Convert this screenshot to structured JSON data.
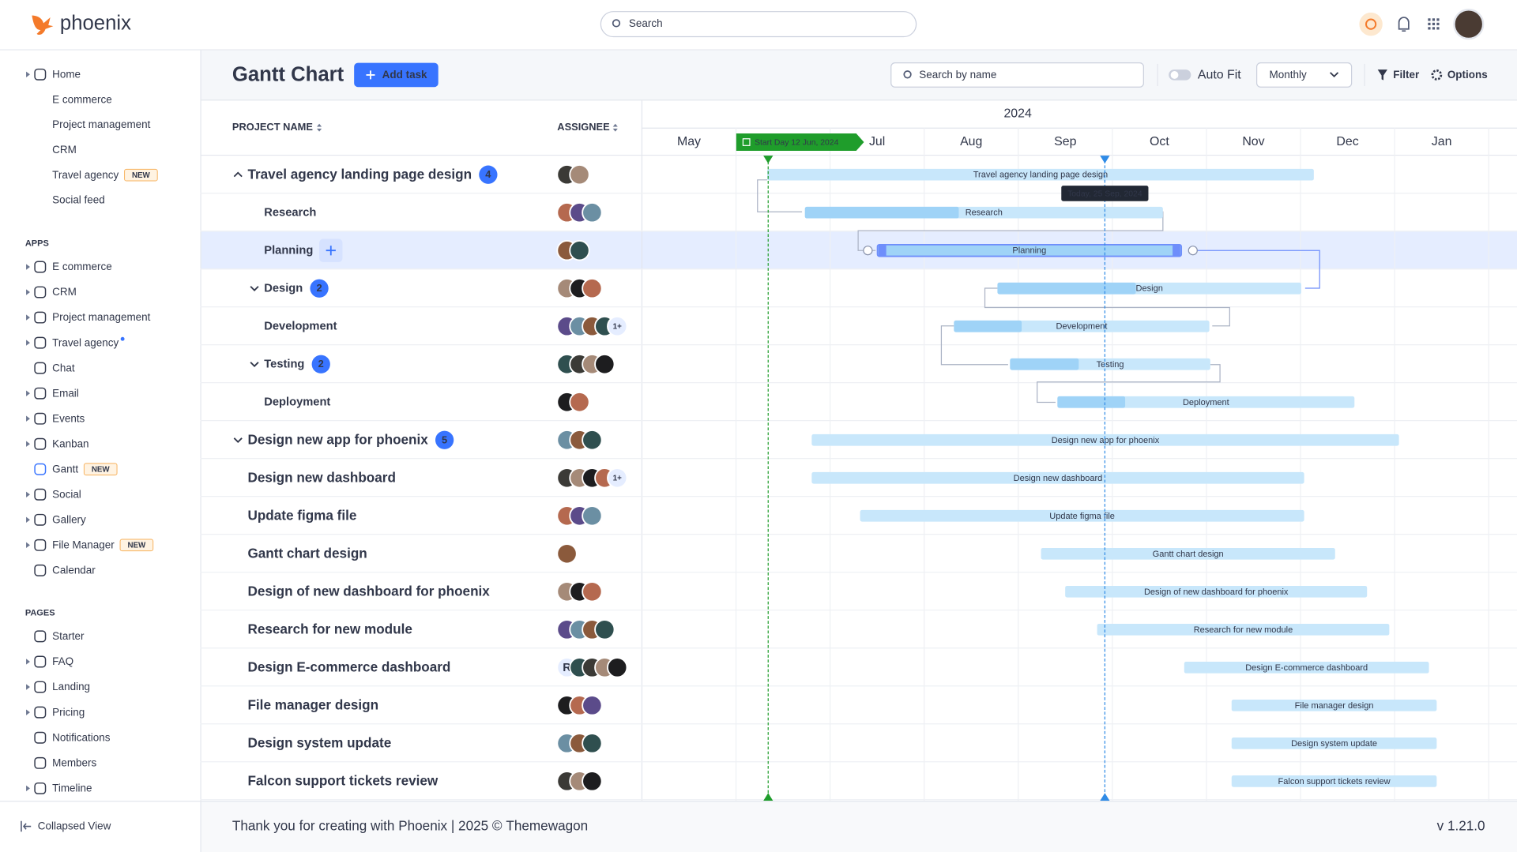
{
  "topbar": {
    "brand": "phoenix",
    "search": "Search"
  },
  "sidebar": {
    "main": [
      {
        "label": "Home"
      },
      {
        "label": "E commerce"
      },
      {
        "label": "Project management"
      },
      {
        "label": "CRM"
      },
      {
        "label": "Travel agency",
        "badge": "NEW"
      },
      {
        "label": "Social feed"
      }
    ],
    "apps_title": "APPS",
    "apps": [
      {
        "label": "E commerce"
      },
      {
        "label": "CRM"
      },
      {
        "label": "Project management"
      },
      {
        "label": "Travel agency"
      },
      {
        "label": "Chat"
      },
      {
        "label": "Email"
      },
      {
        "label": "Events"
      },
      {
        "label": "Kanban"
      },
      {
        "label": "Gantt",
        "badge": "NEW"
      },
      {
        "label": "Social"
      },
      {
        "label": "Gallery"
      },
      {
        "label": "File Manager",
        "badge": "NEW"
      },
      {
        "label": "Calendar"
      }
    ],
    "pages_title": "PAGES",
    "pages": [
      {
        "label": "Starter"
      },
      {
        "label": "FAQ"
      },
      {
        "label": "Landing"
      },
      {
        "label": "Pricing"
      },
      {
        "label": "Notifications"
      },
      {
        "label": "Members"
      },
      {
        "label": "Timeline"
      }
    ],
    "collapse": "Collapsed View"
  },
  "header": {
    "title": "Gantt Chart",
    "add_button": "Add task",
    "search": "Search by name",
    "auto_fit": "Auto Fit",
    "view": "Monthly",
    "filter": "Filter",
    "options": "Options"
  },
  "table": {
    "columns": [
      "PROJECT NAME",
      "ASSIGNEE"
    ],
    "rows": [
      {
        "name": "Travel agency landing page design",
        "count": "4"
      },
      {
        "name": "Research"
      },
      {
        "name": "Planning"
      },
      {
        "name": "Design",
        "count": "2"
      },
      {
        "name": "Development",
        "more": "1+"
      },
      {
        "name": "Testing",
        "count": "2"
      },
      {
        "name": "Deployment"
      },
      {
        "name": "Design new app for phoenix",
        "count": "5"
      },
      {
        "name": "Design new dashboard",
        "more": "1+"
      },
      {
        "name": "Update figma file"
      },
      {
        "name": "Gantt chart design"
      },
      {
        "name": "Design of new dashboard for phoenix"
      },
      {
        "name": "Research for new module"
      },
      {
        "name": "Design E-commerce dashboard",
        "letter": "R"
      },
      {
        "name": "File manager design"
      },
      {
        "name": "Design system update"
      },
      {
        "name": "Falcon support tickets review"
      }
    ]
  },
  "timeline": {
    "year": "2024",
    "months": [
      "May",
      null,
      "Jul",
      "Aug",
      "Sep",
      "Oct",
      "Nov",
      "Dec",
      "Jan"
    ],
    "start_marker": "Start Day 12 Jun, 2024",
    "today_marker": "Today, 25 Sep, 2024"
  },
  "footer": {
    "text": "Thank you for creating with Phoenix | 2025 ©",
    "link": "Themewagon",
    "version": "v 1.21.0"
  }
}
